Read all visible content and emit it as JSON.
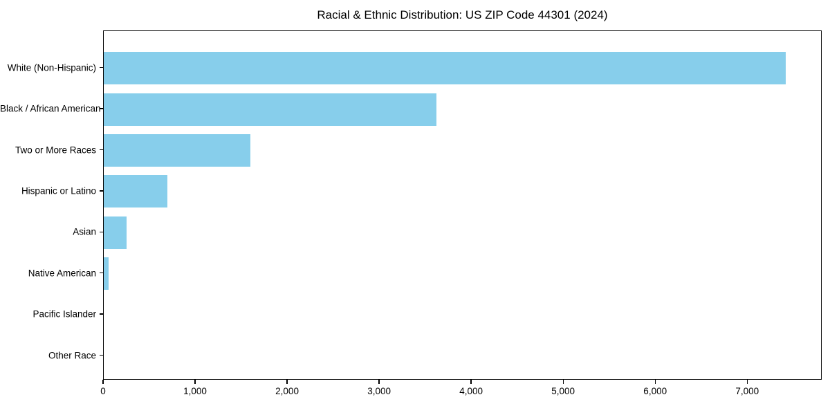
{
  "chart_data": {
    "type": "bar",
    "orientation": "horizontal",
    "title": "Racial & Ethnic Distribution: US ZIP Code 44301 (2024)",
    "categories": [
      "White (Non-Hispanic)",
      "Black / African American",
      "Two or More Races",
      "Hispanic or Latino",
      "Asian",
      "Native American",
      "Pacific Islander",
      "Other Race"
    ],
    "values": [
      7425,
      3620,
      1600,
      695,
      250,
      50,
      0,
      0
    ],
    "xlabel": "",
    "ylabel": "",
    "xlim": [
      0,
      7810
    ],
    "x_ticks": [
      0,
      1000,
      2000,
      3000,
      4000,
      5000,
      6000,
      7000
    ],
    "x_tick_labels": [
      "0",
      "1,000",
      "2,000",
      "3,000",
      "4,000",
      "5,000",
      "6,000",
      "7,000"
    ],
    "bar_color": "#87CEEB",
    "frame_color": "#000000",
    "text_color": "#000000",
    "background_color": "#ffffff",
    "grid": false,
    "legend": null
  }
}
